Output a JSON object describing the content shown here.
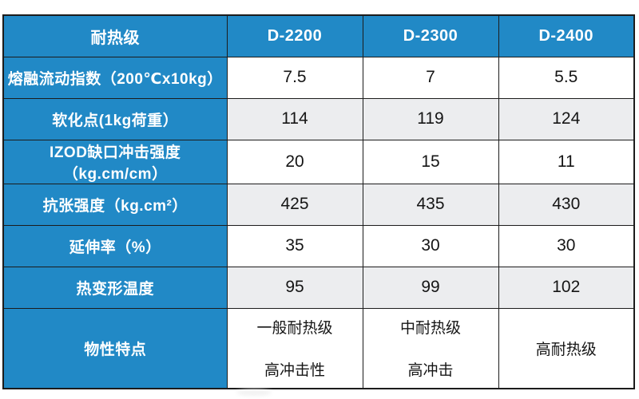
{
  "colors": {
    "header_blue": "#2189C6",
    "row_shaded_gray": "#ECEDEF",
    "row_white": "#FFFFFF",
    "border_black": "#1C1C1C",
    "label_text": "#FFFFFF",
    "value_text": "#151515"
  },
  "table": {
    "header": {
      "label": "耐热级",
      "columns": [
        "D-2200",
        "D-2300",
        "D-2400"
      ]
    },
    "rows": [
      {
        "label": "熔融流动指数（200℃x10kg）",
        "values": [
          "7.5",
          "7",
          "5.5"
        ]
      },
      {
        "label": "软化点(1kg荷重）",
        "values": [
          "114",
          "119",
          "124"
        ]
      },
      {
        "label": "IZOD缺口冲击强度（kg.cm/cm）",
        "values": [
          "20",
          "15",
          "11"
        ]
      },
      {
        "label": "抗张强度（kg.cm²）",
        "values": [
          "425",
          "435",
          "430"
        ]
      },
      {
        "label": "延伸率（%）",
        "values": [
          "35",
          "30",
          "30"
        ]
      },
      {
        "label": "热变形温度",
        "values": [
          "95",
          "99",
          "102"
        ]
      },
      {
        "label": "物性特点",
        "features": [
          [
            "一般耐热级",
            "高冲击性"
          ],
          [
            "中耐热级",
            "高冲击"
          ],
          [
            "高耐热级"
          ]
        ]
      }
    ]
  }
}
